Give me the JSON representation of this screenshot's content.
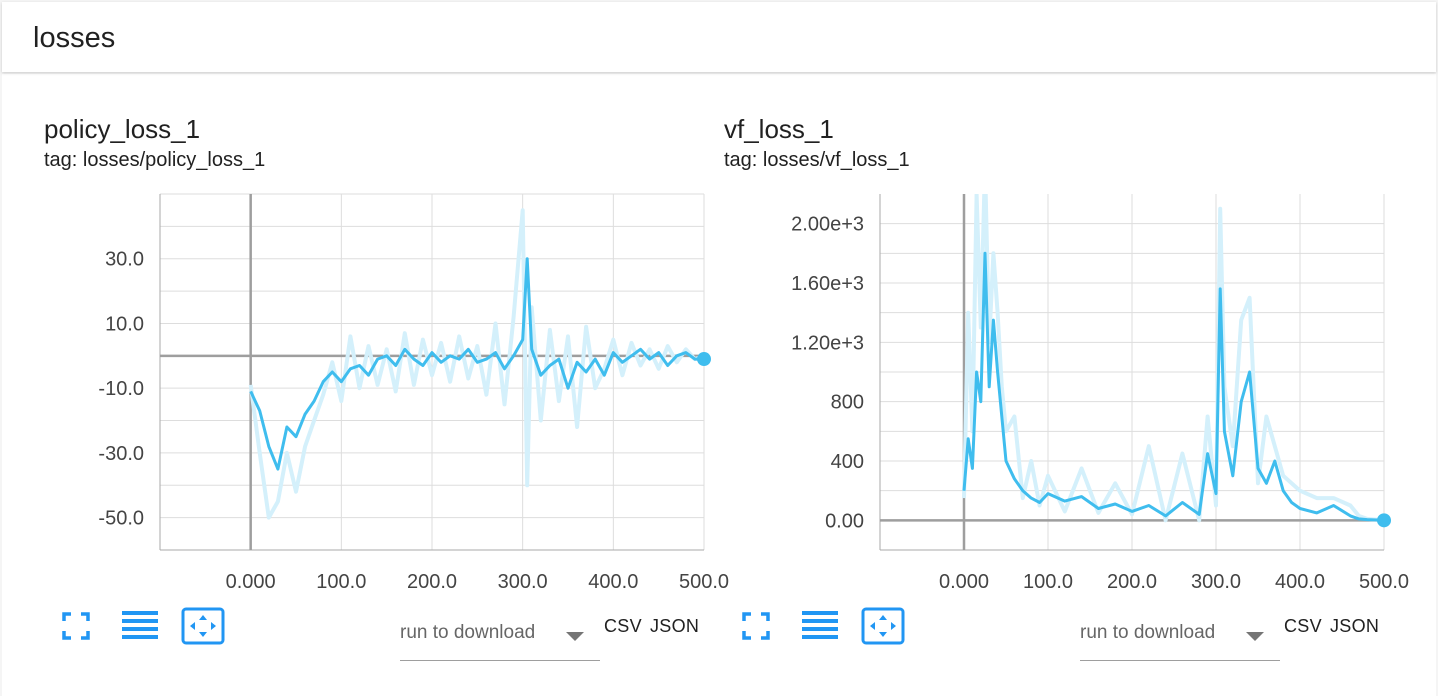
{
  "header": {
    "title": "losses"
  },
  "colors": {
    "accent": "#2196f3",
    "series": "#3fbdee",
    "series_raw": "#d4f0fb",
    "axis": "#9e9e9e",
    "grid": "#dddddd"
  },
  "icons": [
    "fullscreen-icon",
    "list-icon",
    "fit-domain-icon"
  ],
  "cards": [
    {
      "title": "policy_loss_1",
      "tag": "tag: losses/policy_loss_1",
      "download": {
        "label": "run to download",
        "csv": "CSV",
        "json": "JSON"
      }
    },
    {
      "title": "vf_loss_1",
      "tag": "tag: losses/vf_loss_1",
      "download": {
        "label": "run to download",
        "csv": "CSV",
        "json": "JSON"
      }
    }
  ],
  "chart_data": [
    {
      "type": "line",
      "title": "policy_loss_1",
      "xlabel": "",
      "ylabel": "",
      "xlim": [
        -100,
        500
      ],
      "ylim": [
        -60,
        50
      ],
      "grid": true,
      "x_ticks": [
        -100,
        0,
        100,
        200,
        300,
        400,
        500
      ],
      "x_tick_labels": [
        "",
        "0.000",
        "100.0",
        "200.0",
        "300.0",
        "400.0",
        "500.0"
      ],
      "y_ticks": [
        -50,
        -40,
        -30,
        -20,
        -10,
        0,
        10,
        20,
        30,
        40,
        50
      ],
      "y_tick_labels": [
        "-50.0",
        "",
        "-30.0",
        "",
        "-10.0",
        "",
        "10.0",
        "",
        "30.0",
        "",
        ""
      ],
      "x": [
        0,
        10,
        20,
        30,
        40,
        50,
        60,
        70,
        80,
        90,
        100,
        110,
        120,
        130,
        140,
        150,
        160,
        170,
        180,
        190,
        200,
        210,
        220,
        230,
        240,
        250,
        260,
        270,
        280,
        290,
        300,
        305,
        310,
        320,
        330,
        340,
        350,
        360,
        370,
        380,
        390,
        400,
        410,
        420,
        430,
        440,
        450,
        460,
        470,
        480,
        490,
        500
      ],
      "series": [
        {
          "values": [
            -11,
            -17,
            -28,
            -35,
            -22,
            -25,
            -18,
            -14,
            -8,
            -5,
            -8,
            -4,
            -3,
            -6,
            -1,
            0,
            -3,
            2,
            -1,
            -3,
            1,
            -2,
            0,
            -1,
            2,
            -2,
            -1,
            1,
            -4,
            0,
            5,
            30,
            2,
            -6,
            -3,
            -1,
            -10,
            -2,
            -5,
            -1,
            -6,
            1,
            -2,
            0,
            2,
            -1,
            1,
            -3,
            0,
            1,
            -1,
            -1
          ]
        },
        {
          "values": [
            -9,
            -30,
            -50,
            -45,
            -30,
            -42,
            -28,
            -20,
            -12,
            -2,
            -14,
            6,
            -10,
            3,
            -9,
            2,
            -11,
            7,
            -9,
            5,
            -6,
            4,
            -8,
            6,
            -7,
            3,
            -12,
            10,
            -15,
            12,
            45,
            -40,
            15,
            -20,
            8,
            -14,
            6,
            -22,
            9,
            -10,
            -4,
            5,
            -6,
            4,
            -3,
            2,
            -4,
            3,
            -2,
            2,
            -1,
            0
          ]
        }
      ]
    },
    {
      "type": "line",
      "title": "vf_loss_1",
      "xlabel": "",
      "ylabel": "",
      "xlim": [
        -100,
        500
      ],
      "ylim": [
        -200,
        2200
      ],
      "grid": true,
      "x_ticks": [
        -100,
        0,
        100,
        200,
        300,
        400,
        500
      ],
      "x_tick_labels": [
        "",
        "0.000",
        "100.0",
        "200.0",
        "300.0",
        "400.0",
        "500.0"
      ],
      "y_ticks": [
        0,
        200,
        400,
        600,
        800,
        1000,
        1200,
        1400,
        1600,
        1800,
        2000
      ],
      "y_tick_labels": [
        "0.00",
        "",
        "400",
        "",
        "800",
        "",
        "1.20e+3",
        "",
        "1.60e+3",
        "",
        "2.00e+3"
      ],
      "x": [
        0,
        5,
        10,
        15,
        20,
        25,
        30,
        35,
        40,
        45,
        50,
        60,
        70,
        80,
        90,
        100,
        120,
        140,
        160,
        180,
        200,
        220,
        240,
        260,
        280,
        290,
        300,
        305,
        310,
        320,
        330,
        340,
        350,
        360,
        370,
        380,
        390,
        400,
        420,
        440,
        460,
        470,
        480,
        500
      ],
      "series": [
        {
          "values": [
            200,
            550,
            350,
            1000,
            800,
            1800,
            900,
            1350,
            1000,
            700,
            400,
            280,
            200,
            150,
            120,
            180,
            130,
            160,
            80,
            110,
            60,
            100,
            30,
            120,
            40,
            450,
            180,
            1560,
            600,
            300,
            800,
            1000,
            350,
            250,
            400,
            200,
            120,
            80,
            50,
            100,
            30,
            10,
            5,
            0
          ]
        },
        {
          "values": [
            150,
            1400,
            600,
            2200,
            1300,
            2400,
            1200,
            1800,
            1400,
            900,
            600,
            700,
            150,
            400,
            100,
            300,
            60,
            350,
            50,
            250,
            40,
            500,
            0,
            450,
            0,
            700,
            100,
            2100,
            900,
            500,
            1350,
            1500,
            250,
            700,
            500,
            300,
            250,
            200,
            150,
            150,
            100,
            30,
            10,
            0
          ]
        }
      ]
    }
  ]
}
